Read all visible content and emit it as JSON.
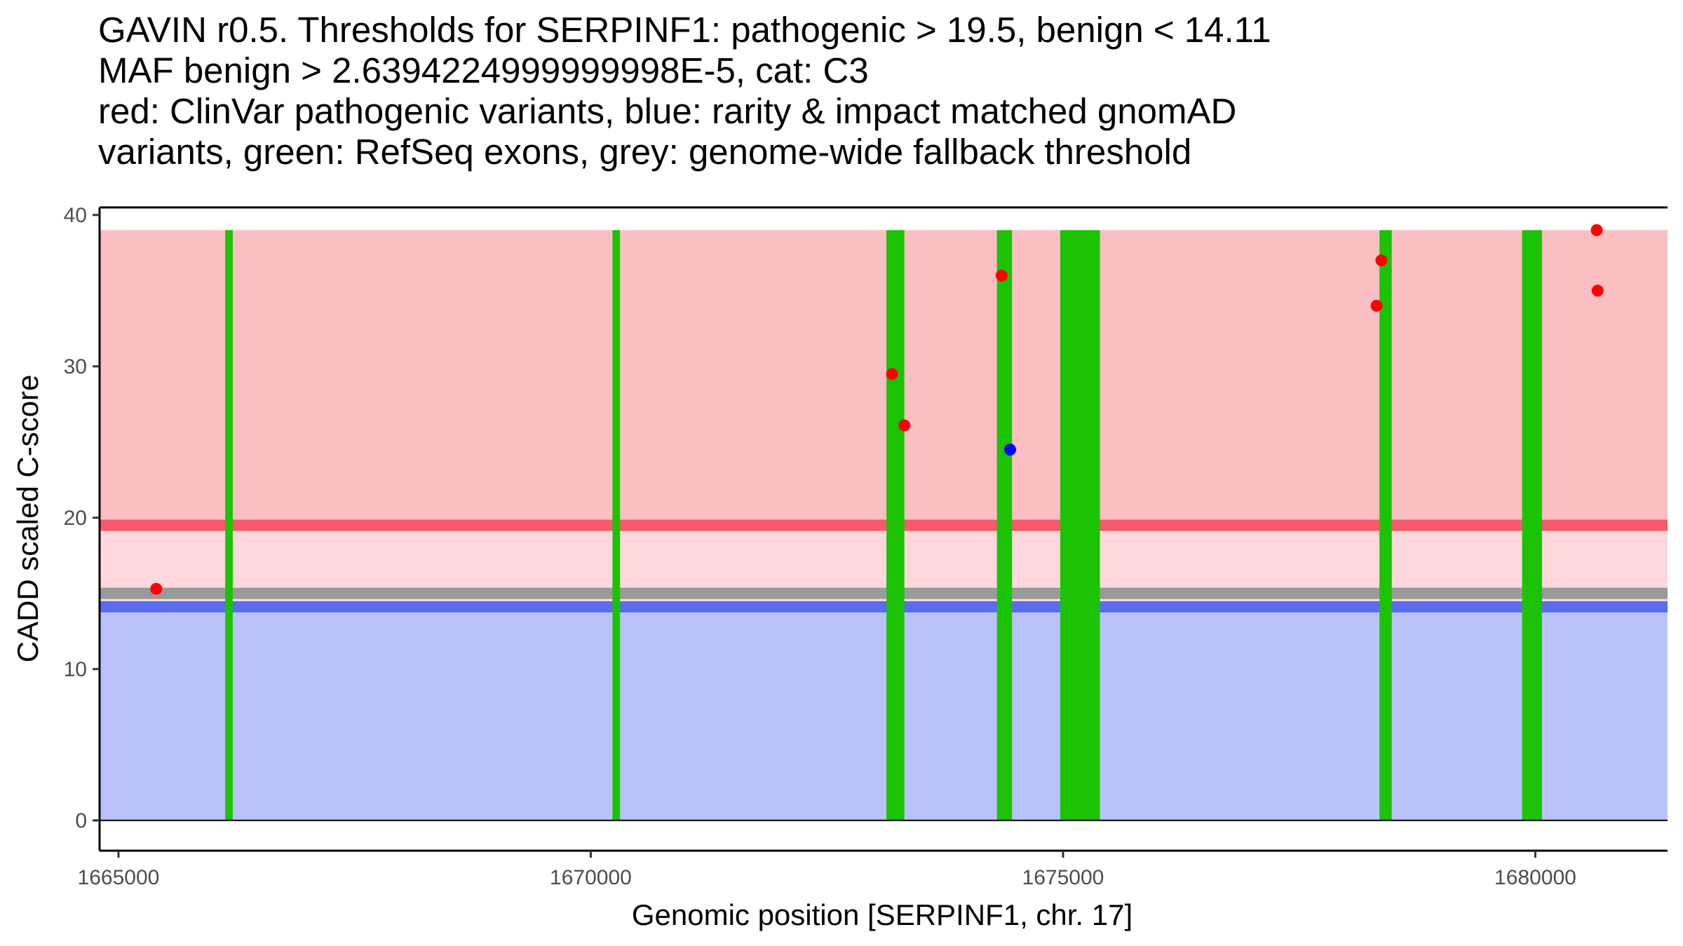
{
  "title_lines": [
    "GAVIN r0.5. Thresholds for SERPINF1: pathogenic > 19.5, benign < 14.11",
    "MAF benign > 2.6394224999999998E-5, cat: C3",
    "red: ClinVar pathogenic variants, blue: rarity & impact matched gnomAD",
    "variants, green: RefSeq exons, grey: genome-wide fallback threshold"
  ],
  "colors": {
    "pathogenic_region": "#fbbec3",
    "intermediate_region": "#fdd7dc",
    "benign_region": "#bbc2fa",
    "pathogenic_line": "#f55a68",
    "benign_line": "#5a6df0",
    "fallback_line": "#9a9a9a",
    "exon": "#1bc304",
    "clinvar_point": "#ff0000",
    "gnomad_point": "#0000ff"
  },
  "chart_data": {
    "type": "scatter",
    "xlabel": "Genomic position [SERPINF1, chr. 17]",
    "ylabel": "CADD scaled C-score",
    "xlim": [
      1664800,
      1681400
    ],
    "ylim": [
      -2,
      40.5
    ],
    "x_ticks": [
      1665000,
      1670000,
      1675000,
      1680000
    ],
    "x_tick_labels": [
      "1665000",
      "1670000",
      "1675000",
      "1680000"
    ],
    "y_ticks": [
      0,
      10,
      20,
      30,
      40
    ],
    "y_tick_labels": [
      "0",
      "10",
      "20",
      "30",
      "40"
    ],
    "thresholds": {
      "pathogenic": 19.5,
      "benign": 14.11,
      "fallback": 15.0,
      "region_top": 39.0
    },
    "exons": [
      {
        "start": 1666130,
        "end": 1666210
      },
      {
        "start": 1670230,
        "end": 1670310
      },
      {
        "start": 1673130,
        "end": 1673320
      },
      {
        "start": 1674300,
        "end": 1674460
      },
      {
        "start": 1674970,
        "end": 1675390
      },
      {
        "start": 1678350,
        "end": 1678480
      },
      {
        "start": 1679860,
        "end": 1680070
      }
    ],
    "series": [
      {
        "name": "ClinVar pathogenic variants",
        "points": [
          {
            "x": 1665400,
            "y": 15.3
          },
          {
            "x": 1673190,
            "y": 29.5
          },
          {
            "x": 1673320,
            "y": 26.1
          },
          {
            "x": 1674350,
            "y": 36.0
          },
          {
            "x": 1678320,
            "y": 34.0
          },
          {
            "x": 1678370,
            "y": 37.0
          },
          {
            "x": 1680650,
            "y": 39.0
          },
          {
            "x": 1680660,
            "y": 35.0
          }
        ]
      },
      {
        "name": "rarity & impact matched gnomAD variants",
        "points": [
          {
            "x": 1674440,
            "y": 24.5
          }
        ]
      }
    ]
  }
}
